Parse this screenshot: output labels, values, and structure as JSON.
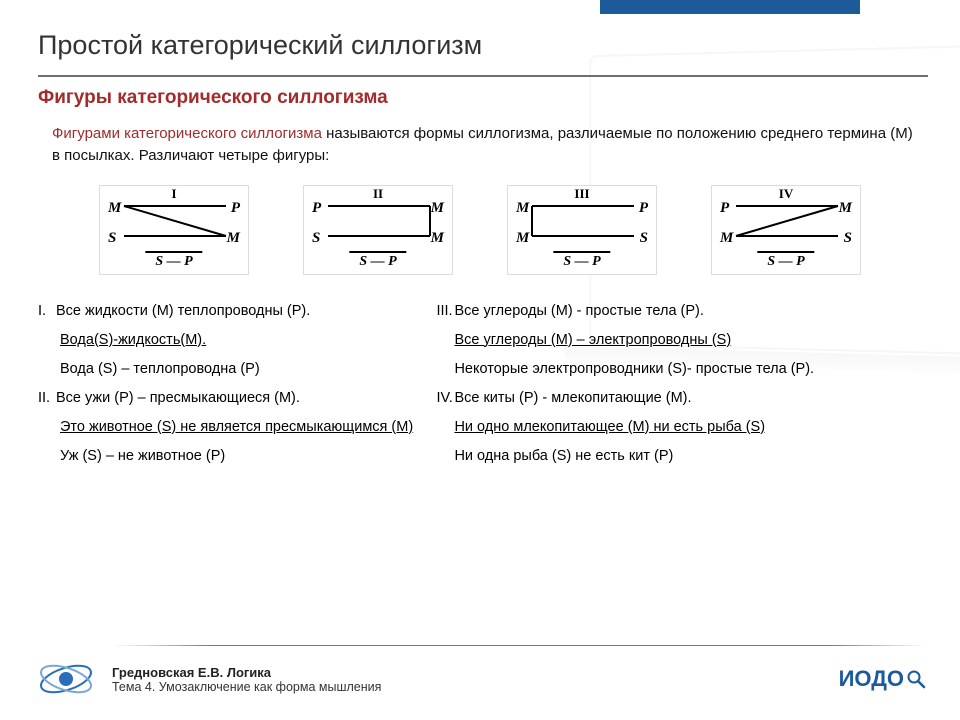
{
  "title": "Простой категорический силлогизм",
  "subtitle": "Фигуры категорического силлогизма",
  "intro_highlight": "Фигурами категорического силлогизма",
  "intro_rest": " называются формы силлогизма, различаемые по положению среднего термина (М) в посылках. Различают четыре фигуры:",
  "figures": [
    {
      "roman": "I",
      "tl": "M",
      "tr": "P",
      "bl": "S",
      "br": "M",
      "diag": "tl-br",
      "concl": "S — P"
    },
    {
      "roman": "II",
      "tl": "P",
      "tr": "M",
      "bl": "S",
      "br": "M",
      "diag": "none-right",
      "concl": "S — P"
    },
    {
      "roman": "III",
      "tl": "M",
      "tr": "P",
      "bl": "M",
      "br": "S",
      "diag": "none-left",
      "concl": "S — P"
    },
    {
      "roman": "IV",
      "tl": "P",
      "tr": "M",
      "bl": "M",
      "br": "S",
      "diag": "tr-bl",
      "concl": "S — P"
    }
  ],
  "left_col": [
    {
      "prefix": "I.",
      "text": "Все жидкости (М) теплопроводны (Р).",
      "cls": ""
    },
    {
      "prefix": "",
      "text": "Вода(S)-жидкость(М).",
      "cls": "indent uline"
    },
    {
      "prefix": "",
      "text": "Вода (S) – теплопроводна (Р)",
      "cls": "indent"
    },
    {
      "prefix": "II.",
      "text": "Все ужи (Р) – пресмыкающиеся (М).",
      "cls": ""
    },
    {
      "prefix": "",
      "text": "Это животное (S) не является пресмыкающимся (М)",
      "cls": "indent uline"
    },
    {
      "prefix": "",
      "text": "Уж (S) – не животное (Р)",
      "cls": "indent"
    }
  ],
  "right_col": [
    {
      "prefix": "III.",
      "text": "Все углероды (М) -  простые тела (Р).",
      "cls": ""
    },
    {
      "prefix": "",
      "text": "Все углероды (М) – электропроводны (S)",
      "cls": "indent2 uline"
    },
    {
      "prefix": "",
      "text": "Некоторые электропроводники (S)- простые тела (Р).",
      "cls": "indent2"
    },
    {
      "prefix": "IV.",
      "text": "Все киты (Р) - млекопитающие (М).",
      "cls": ""
    },
    {
      "prefix": "",
      "text": "Ни одно млекопитающее (М) ни есть рыба (S)",
      "cls": "indent2 uline"
    },
    {
      "prefix": "",
      "text": "Ни одна рыба (S) не есть кит (Р)",
      "cls": "indent2"
    }
  ],
  "footer": {
    "author": "Гредновская Е.В. Логика",
    "topic": "Тема 4. Умозаключение как форма мышления",
    "brand": "ИОДО"
  },
  "colors": {
    "accent_blue": "#1d5a9a",
    "accent_red": "#a22b2b",
    "text": "#111111",
    "rule": "#6e6e6e"
  }
}
